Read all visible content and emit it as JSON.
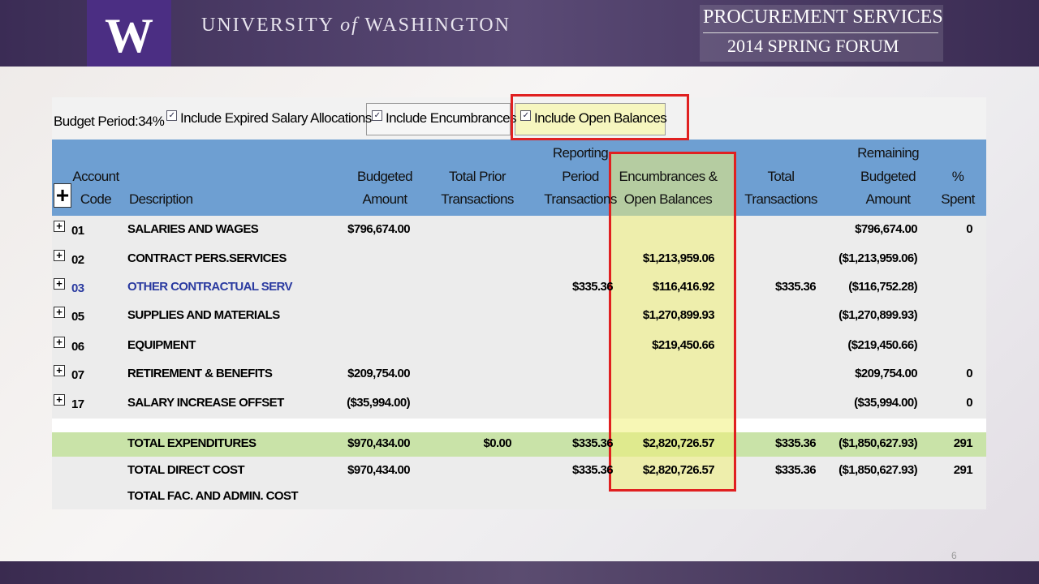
{
  "header": {
    "logo": "W",
    "university": [
      "UNIVERSITY",
      "of",
      "WASHINGTON"
    ],
    "event": [
      "PROCUREMENT SERVICES",
      "2014 SPRING FORUM"
    ]
  },
  "toolbar": {
    "budget_period": "Budget Period:34%",
    "options": [
      "Include Expired Salary Allocations",
      "Include Encumbrances",
      "Include Open Balances"
    ]
  },
  "table": {
    "columns": [
      [
        "Account",
        "Code"
      ],
      [
        "Description"
      ],
      [
        "Budgeted",
        "Amount"
      ],
      [
        "Total Prior",
        "Transactions"
      ],
      [
        "Reporting",
        "Period",
        "Transactions"
      ],
      [
        "Encumbrances &",
        "Open Balances"
      ],
      [
        "Total",
        "Transactions"
      ],
      [
        "Remaining",
        "Budgeted",
        "Amount"
      ],
      [
        "%",
        "Spent"
      ]
    ],
    "rows": [
      [
        "01",
        "SALARIES AND WAGES",
        "$796,674.00",
        null,
        null,
        null,
        null,
        "$796,674.00",
        "0"
      ],
      [
        "02",
        "CONTRACT PERS.SERVICES",
        null,
        null,
        null,
        "$1,213,959.06",
        null,
        "($1,213,959.06)",
        null
      ],
      [
        "03",
        "OTHER CONTRACTUAL SERV",
        null,
        null,
        "$335.36",
        "$116,416.92",
        "$335.36",
        "($116,752.28)",
        null
      ],
      [
        "05",
        "SUPPLIES AND MATERIALS",
        null,
        null,
        null,
        "$1,270,899.93",
        null,
        "($1,270,899.93)",
        null
      ],
      [
        "06",
        "EQUIPMENT",
        null,
        null,
        null,
        "$219,450.66",
        null,
        "($219,450.66)",
        null
      ],
      [
        "07",
        "RETIREMENT & BENEFITS",
        "$209,754.00",
        null,
        null,
        null,
        null,
        "$209,754.00",
        "0"
      ],
      [
        "17",
        "SALARY INCREASE OFFSET",
        "($35,994.00)",
        null,
        null,
        null,
        null,
        "($35,994.00)",
        "0"
      ]
    ],
    "totals": [
      [
        null,
        "TOTAL EXPENDITURES",
        "$970,434.00",
        "$0.00",
        "$335.36",
        "$2,820,726.57",
        "$335.36",
        "($1,850,627.93)",
        "291"
      ],
      [
        null,
        "TOTAL DIRECT COST",
        "$970,434.00",
        null,
        "$335.36",
        "$2,820,726.57",
        "$335.36",
        "($1,850,627.93)",
        "291"
      ],
      [
        null,
        "TOTAL FAC. AND ADMIN. COST",
        null,
        null,
        null,
        null,
        null,
        null,
        null
      ]
    ]
  },
  "page_number": "6"
}
